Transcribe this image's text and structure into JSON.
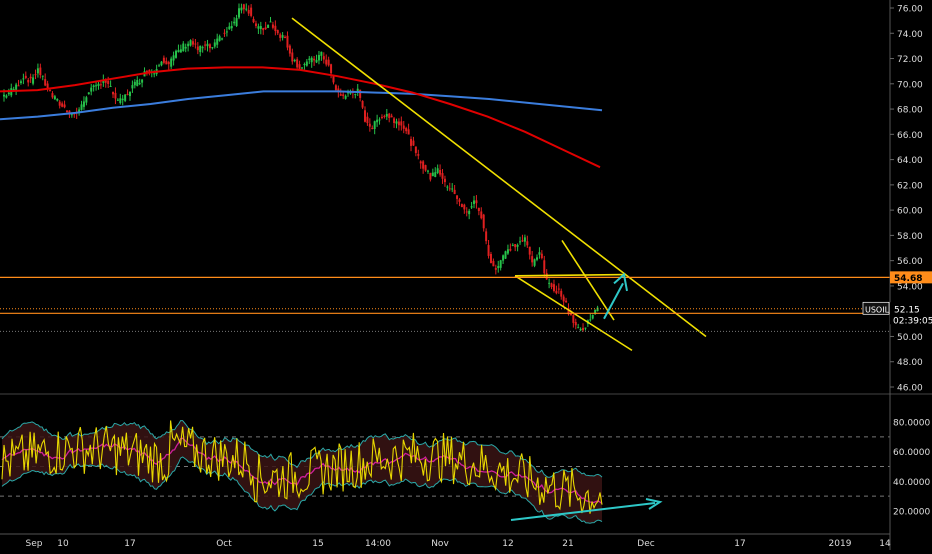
{
  "chart_data": [
    {
      "type": "candlestick",
      "symbol_label": "USOIL",
      "last_price_label": "52.15",
      "countdown_label": "02:39:05",
      "level_label": "54.68",
      "colors": {
        "background": "#000000",
        "up": "#26c24a",
        "down": "#e02020",
        "ma_red": "#e00000",
        "ma_blue": "#3b7ddd",
        "trendline": "#f0e000",
        "arrow": "#2ec8c8",
        "level_line": "#ff8c1a",
        "axis_text": "#dddddd",
        "grid": "#333333"
      },
      "y_ticks": [
        "76.00",
        "74.00",
        "72.00",
        "70.00",
        "68.00",
        "66.00",
        "64.00",
        "62.00",
        "60.00",
        "58.00",
        "56.00",
        "54.00",
        "52.00",
        "50.00",
        "48.00",
        "46.00"
      ],
      "x_ticks": [
        "Sep",
        "10",
        "17",
        "Oct",
        "15",
        "14:00",
        "Nov",
        "12",
        "21",
        "Dec",
        "17",
        "2019",
        "14"
      ],
      "ylim": [
        46,
        76.5
      ],
      "horizontal_level": 54.68,
      "last_price": 52.15,
      "close_approx": [
        69.0,
        69.3,
        69.8,
        70.6,
        70.2,
        71.2,
        70.0,
        69.0,
        68.4,
        67.9,
        67.5,
        68.2,
        69.5,
        69.7,
        70.4,
        69.6,
        68.5,
        69.0,
        69.8,
        70.3,
        71.1,
        70.9,
        72.0,
        71.6,
        72.4,
        73.0,
        73.4,
        72.7,
        73.0,
        72.8,
        73.6,
        74.2,
        74.8,
        76.2,
        75.8,
        74.5,
        74.3,
        74.9,
        74.0,
        73.6,
        72.0,
        71.3,
        71.7,
        71.9,
        72.3,
        71.4,
        69.4,
        69.0,
        69.3,
        69.4,
        67.2,
        66.5,
        67.4,
        67.6,
        67.1,
        66.9,
        65.8,
        64.4,
        63.5,
        62.6,
        63.4,
        62.0,
        61.8,
        60.5,
        59.7,
        60.8,
        59.5,
        56.4,
        55.3,
        56.4,
        57.0,
        57.3,
        57.7,
        55.8,
        56.8,
        54.3,
        53.8,
        53.4,
        52.0,
        50.9,
        50.4,
        51.6,
        52.15
      ],
      "ma_red_approx": [
        69.4,
        69.5,
        69.9,
        70.4,
        70.9,
        71.2,
        71.3,
        71.3,
        71.1,
        70.6,
        70.0,
        69.3,
        68.4,
        67.4,
        66.2,
        64.8,
        63.4
      ],
      "ma_blue_approx": [
        67.2,
        67.4,
        67.7,
        68.1,
        68.4,
        68.8,
        69.1,
        69.4,
        69.4,
        69.4,
        69.3,
        69.2,
        69.0,
        68.8,
        68.5,
        68.2,
        67.9
      ],
      "annotations": "downtrend channel, falling wedge, bullish arrow to 54.68"
    },
    {
      "type": "oscillator",
      "y_ticks": [
        "80.0000",
        "60.0000",
        "40.0000",
        "20.0000"
      ],
      "ylim": [
        10,
        95
      ],
      "levels": [
        70,
        50,
        30
      ],
      "annotations": "rising support line (bullish divergence)"
    }
  ]
}
